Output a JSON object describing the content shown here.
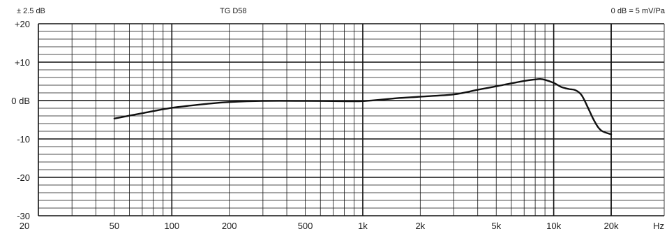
{
  "header": {
    "left": "± 2.5 dB",
    "center": "TG D58",
    "right": "0 dB = 5 mV/Pa"
  },
  "chart_data": {
    "type": "line",
    "title": "TG D58",
    "x_scale": "log",
    "xlim": [
      20,
      30000
    ],
    "ylim": [
      -30,
      20
    ],
    "grid": true,
    "x_ticks": [
      {
        "value": 20,
        "label": "20"
      },
      {
        "value": 50,
        "label": "50"
      },
      {
        "value": 100,
        "label": "100"
      },
      {
        "value": 200,
        "label": "200"
      },
      {
        "value": 500,
        "label": "500"
      },
      {
        "value": 1000,
        "label": "1k"
      },
      {
        "value": 2000,
        "label": "2k"
      },
      {
        "value": 5000,
        "label": "5k"
      },
      {
        "value": 10000,
        "label": "10k"
      },
      {
        "value": 20000,
        "label": "20k"
      }
    ],
    "x_unit_label": "Hz",
    "y_ticks": [
      {
        "value": 20,
        "label": "+20"
      },
      {
        "value": 10,
        "label": "+10"
      },
      {
        "value": 0,
        "label": "0 dB"
      },
      {
        "value": -10,
        "label": "-10"
      },
      {
        "value": -20,
        "label": "-20"
      },
      {
        "value": -30,
        "label": "-30"
      }
    ],
    "series": [
      {
        "x": [
          50,
          70,
          100,
          150,
          200,
          300,
          500,
          700,
          1000,
          1500,
          2000,
          3000,
          4000,
          5000,
          6000,
          7000,
          8000,
          8500,
          9000,
          10000,
          11000,
          12000,
          13000,
          14000,
          15000,
          16000,
          17000,
          18000,
          20000
        ],
        "y": [
          -4.7,
          -3.3,
          -1.9,
          -0.9,
          -0.4,
          -0.1,
          -0.1,
          -0.15,
          -0.15,
          0.6,
          1.0,
          1.6,
          2.8,
          3.7,
          4.5,
          5.1,
          5.5,
          5.6,
          5.4,
          4.6,
          3.5,
          3.0,
          2.7,
          1.4,
          -1.5,
          -4.5,
          -6.8,
          -8.0,
          -8.8
        ]
      }
    ]
  }
}
